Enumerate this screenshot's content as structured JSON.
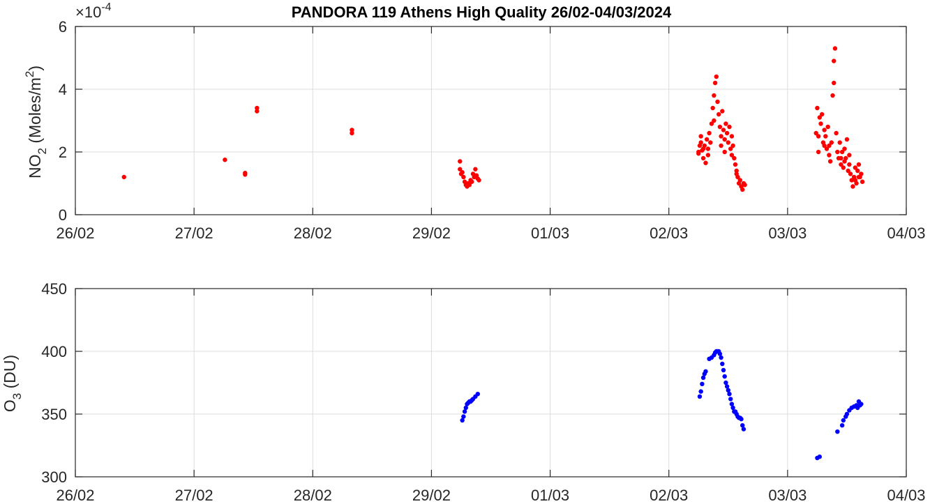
{
  "figure": {
    "title": "PANDORA 119 Athens High Quality 26/02-04/03/2024"
  },
  "chart_data": [
    {
      "type": "scatter",
      "title": "PANDORA 119 Athens High Quality 26/02-04/03/2024",
      "xlabel": "",
      "ylabel": "NO2 (Moles/m2)",
      "ylabel_parts": {
        "main": "NO",
        "sub": "2",
        "unit_pre": " (Moles/m",
        "unit_sup": "2",
        "unit_post": ")"
      },
      "y_multiplier": "×10^-4",
      "y_multiplier_parts": {
        "base": "×10",
        "exp": "-4"
      },
      "x_ticks": [
        "26/02",
        "27/02",
        "28/02",
        "29/02",
        "01/03",
        "02/03",
        "03/03",
        "04/03"
      ],
      "xlim": [
        0,
        7
      ],
      "y_ticks": [
        "0",
        "2",
        "4",
        "6"
      ],
      "ylim": [
        0,
        6
      ],
      "grid": true,
      "color": "#ff0000",
      "series": [
        {
          "name": "NO2",
          "points": [
            [
              0.41,
              1.2
            ],
            [
              1.26,
              1.75
            ],
            [
              1.43,
              1.28
            ],
            [
              1.43,
              1.33
            ],
            [
              1.53,
              3.3
            ],
            [
              1.53,
              3.4
            ],
            [
              2.33,
              2.6
            ],
            [
              2.33,
              2.7
            ],
            [
              3.24,
              1.7
            ],
            [
              3.24,
              1.45
            ],
            [
              3.25,
              1.3
            ],
            [
              3.26,
              1.35
            ],
            [
              3.27,
              1.2
            ],
            [
              3.28,
              1.05
            ],
            [
              3.29,
              0.95
            ],
            [
              3.3,
              0.9
            ],
            [
              3.31,
              1.0
            ],
            [
              3.32,
              0.95
            ],
            [
              3.33,
              1.1
            ],
            [
              3.34,
              1.05
            ],
            [
              3.35,
              1.3
            ],
            [
              3.36,
              1.2
            ],
            [
              3.37,
              1.45
            ],
            [
              3.38,
              1.25
            ],
            [
              3.39,
              1.15
            ],
            [
              3.4,
              1.1
            ],
            [
              5.25,
              1.95
            ],
            [
              5.26,
              2.2
            ],
            [
              5.27,
              2.5
            ],
            [
              5.28,
              2.05
            ],
            [
              5.29,
              1.8
            ],
            [
              5.3,
              2.2
            ],
            [
              5.31,
              1.65
            ],
            [
              5.32,
              2.4
            ],
            [
              5.33,
              2.1
            ],
            [
              5.34,
              2.6
            ],
            [
              5.35,
              2.3
            ],
            [
              5.36,
              2.9
            ],
            [
              5.37,
              3.4
            ],
            [
              5.38,
              3.8
            ],
            [
              5.39,
              4.2
            ],
            [
              5.4,
              4.4
            ],
            [
              5.41,
              3.6
            ],
            [
              5.42,
              3.2
            ],
            [
              5.43,
              2.8
            ],
            [
              5.44,
              2.5
            ],
            [
              5.45,
              3.3
            ],
            [
              5.46,
              2.7
            ],
            [
              5.47,
              2.4
            ],
            [
              5.48,
              2.9
            ],
            [
              5.49,
              2.6
            ],
            [
              5.5,
              2.3
            ],
            [
              5.51,
              2.8
            ],
            [
              5.52,
              2.1
            ],
            [
              5.53,
              2.5
            ],
            [
              5.54,
              2.2
            ],
            [
              5.55,
              1.8
            ],
            [
              5.56,
              1.6
            ],
            [
              5.57,
              1.4
            ],
            [
              5.58,
              1.2
            ],
            [
              5.59,
              1.0
            ],
            [
              5.6,
              1.1
            ],
            [
              5.61,
              0.9
            ],
            [
              5.62,
              0.8
            ],
            [
              5.63,
              1.0
            ],
            [
              5.64,
              0.95
            ],
            [
              5.25,
              2.0
            ],
            [
              5.27,
              2.3
            ],
            [
              5.29,
              2.1
            ],
            [
              5.33,
              1.9
            ],
            [
              5.38,
              3.0
            ],
            [
              5.44,
              2.2
            ],
            [
              5.47,
              2.0
            ],
            [
              5.53,
              1.9
            ],
            [
              5.57,
              1.3
            ],
            [
              6.24,
              2.6
            ],
            [
              6.25,
              3.4
            ],
            [
              6.26,
              2.5
            ],
            [
              6.27,
              3.1
            ],
            [
              6.28,
              2.9
            ],
            [
              6.29,
              3.2
            ],
            [
              6.3,
              2.3
            ],
            [
              6.31,
              2.7
            ],
            [
              6.32,
              2.5
            ],
            [
              6.33,
              2.1
            ],
            [
              6.34,
              2.8
            ],
            [
              6.35,
              2.2
            ],
            [
              6.36,
              1.7
            ],
            [
              6.37,
              2.3
            ],
            [
              6.38,
              3.8
            ],
            [
              6.39,
              4.2
            ],
            [
              6.39,
              4.9
            ],
            [
              6.4,
              5.3
            ],
            [
              6.41,
              2.6
            ],
            [
              6.42,
              2.0
            ],
            [
              6.43,
              1.8
            ],
            [
              6.44,
              2.3
            ],
            [
              6.45,
              1.6
            ],
            [
              6.46,
              2.0
            ],
            [
              6.47,
              1.5
            ],
            [
              6.48,
              2.1
            ],
            [
              6.49,
              1.8
            ],
            [
              6.5,
              2.4
            ],
            [
              6.51,
              1.4
            ],
            [
              6.52,
              1.6
            ],
            [
              6.53,
              1.3
            ],
            [
              6.54,
              1.1
            ],
            [
              6.55,
              0.9
            ],
            [
              6.56,
              1.2
            ],
            [
              6.57,
              1.5
            ],
            [
              6.58,
              1.0
            ],
            [
              6.59,
              1.4
            ],
            [
              6.6,
              1.6
            ],
            [
              6.61,
              1.2
            ],
            [
              6.62,
              1.3
            ],
            [
              6.63,
              1.05
            ],
            [
              6.26,
              2.0
            ],
            [
              6.31,
              2.2
            ],
            [
              6.35,
              1.9
            ],
            [
              6.45,
              1.8
            ],
            [
              6.48,
              1.7
            ],
            [
              6.52,
              1.9
            ],
            [
              6.57,
              1.1
            ],
            [
              6.6,
              1.2
            ]
          ]
        }
      ]
    },
    {
      "type": "scatter",
      "title": "",
      "xlabel": "",
      "ylabel": "O3 (DU)",
      "ylabel_parts": {
        "main": "O",
        "sub": "3",
        "unit_pre": " (DU)",
        "unit_sup": "",
        "unit_post": ""
      },
      "x_ticks": [
        "26/02",
        "27/02",
        "28/02",
        "29/02",
        "01/03",
        "02/03",
        "03/03",
        "04/03"
      ],
      "xlim": [
        0,
        7
      ],
      "y_ticks": [
        "300",
        "350",
        "400",
        "450"
      ],
      "ylim": [
        300,
        450
      ],
      "grid": true,
      "color": "#0000ff",
      "series": [
        {
          "name": "O3",
          "points": [
            [
              3.26,
              345
            ],
            [
              3.27,
              348
            ],
            [
              3.28,
              352
            ],
            [
              3.29,
              355
            ],
            [
              3.3,
              358
            ],
            [
              3.31,
              359
            ],
            [
              3.32,
              360
            ],
            [
              3.33,
              360
            ],
            [
              3.34,
              361
            ],
            [
              3.35,
              362
            ],
            [
              3.37,
              364
            ],
            [
              3.39,
              366
            ],
            [
              5.26,
              364
            ],
            [
              5.27,
              368
            ],
            [
              5.28,
              374
            ],
            [
              5.29,
              379
            ],
            [
              5.3,
              382
            ],
            [
              5.31,
              384
            ],
            [
              5.34,
              394
            ],
            [
              5.36,
              395
            ],
            [
              5.38,
              397
            ],
            [
              5.39,
              399
            ],
            [
              5.4,
              400
            ],
            [
              5.41,
              400
            ],
            [
              5.42,
              400
            ],
            [
              5.43,
              398
            ],
            [
              5.44,
              395
            ],
            [
              5.45,
              390
            ],
            [
              5.46,
              385
            ],
            [
              5.47,
              380
            ],
            [
              5.48,
              375
            ],
            [
              5.49,
              372
            ],
            [
              5.5,
              369
            ],
            [
              5.51,
              366
            ],
            [
              5.52,
              362
            ],
            [
              5.53,
              358
            ],
            [
              5.54,
              355
            ],
            [
              5.55,
              352
            ],
            [
              5.56,
              352
            ],
            [
              5.57,
              350
            ],
            [
              5.58,
              348
            ],
            [
              5.59,
              347
            ],
            [
              5.6,
              347
            ],
            [
              5.61,
              346
            ],
            [
              5.62,
              341
            ],
            [
              5.63,
              338
            ],
            [
              6.25,
              315
            ],
            [
              6.27,
              316
            ],
            [
              6.42,
              336
            ],
            [
              6.46,
              341
            ],
            [
              6.47,
              345
            ],
            [
              6.49,
              348
            ],
            [
              6.5,
              350
            ],
            [
              6.52,
              353
            ],
            [
              6.54,
              355
            ],
            [
              6.56,
              356
            ],
            [
              6.58,
              357
            ],
            [
              6.59,
              355
            ],
            [
              6.6,
              360
            ],
            [
              6.61,
              357
            ],
            [
              6.62,
              358
            ]
          ]
        }
      ]
    }
  ]
}
